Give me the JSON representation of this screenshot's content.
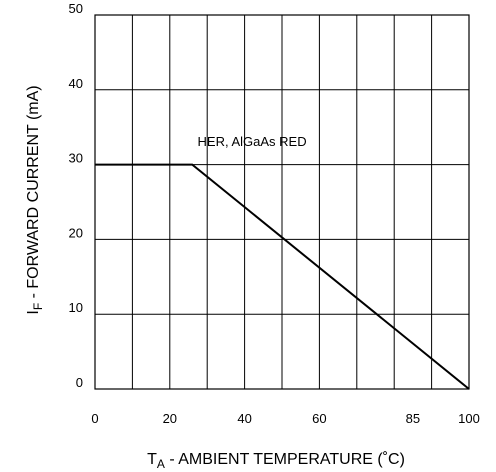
{
  "chart_data": {
    "type": "line",
    "xlabel": {
      "main": "T",
      "sub": "A",
      "rest": " - AMBIENT TEMPERATURE (˚C)"
    },
    "ylabel": {
      "main": "I",
      "sub": "F",
      "rest": " - FORWARD CURRENT (mA)"
    },
    "xlim": [
      0,
      100
    ],
    "ylim": [
      0,
      50
    ],
    "x_ticks": [
      {
        "value": 0,
        "label": "0"
      },
      {
        "value": 20,
        "label": "20"
      },
      {
        "value": 40,
        "label": "40"
      },
      {
        "value": 60,
        "label": "60"
      },
      {
        "value": 85,
        "label": "85"
      },
      {
        "value": 100,
        "label": "100"
      }
    ],
    "y_ticks": [
      {
        "value": 0,
        "label": "0"
      },
      {
        "value": 10,
        "label": "10"
      },
      {
        "value": 20,
        "label": "20"
      },
      {
        "value": 30,
        "label": "30"
      },
      {
        "value": 40,
        "label": "40"
      },
      {
        "value": 50,
        "label": "50"
      }
    ],
    "grid": true,
    "series": [
      {
        "x": [
          0,
          26,
          100
        ],
        "y": [
          30,
          30,
          0
        ]
      }
    ],
    "annotations": [
      {
        "text": "HER, AlGaAs RED",
        "x": 42,
        "y": 32.5
      }
    ]
  }
}
